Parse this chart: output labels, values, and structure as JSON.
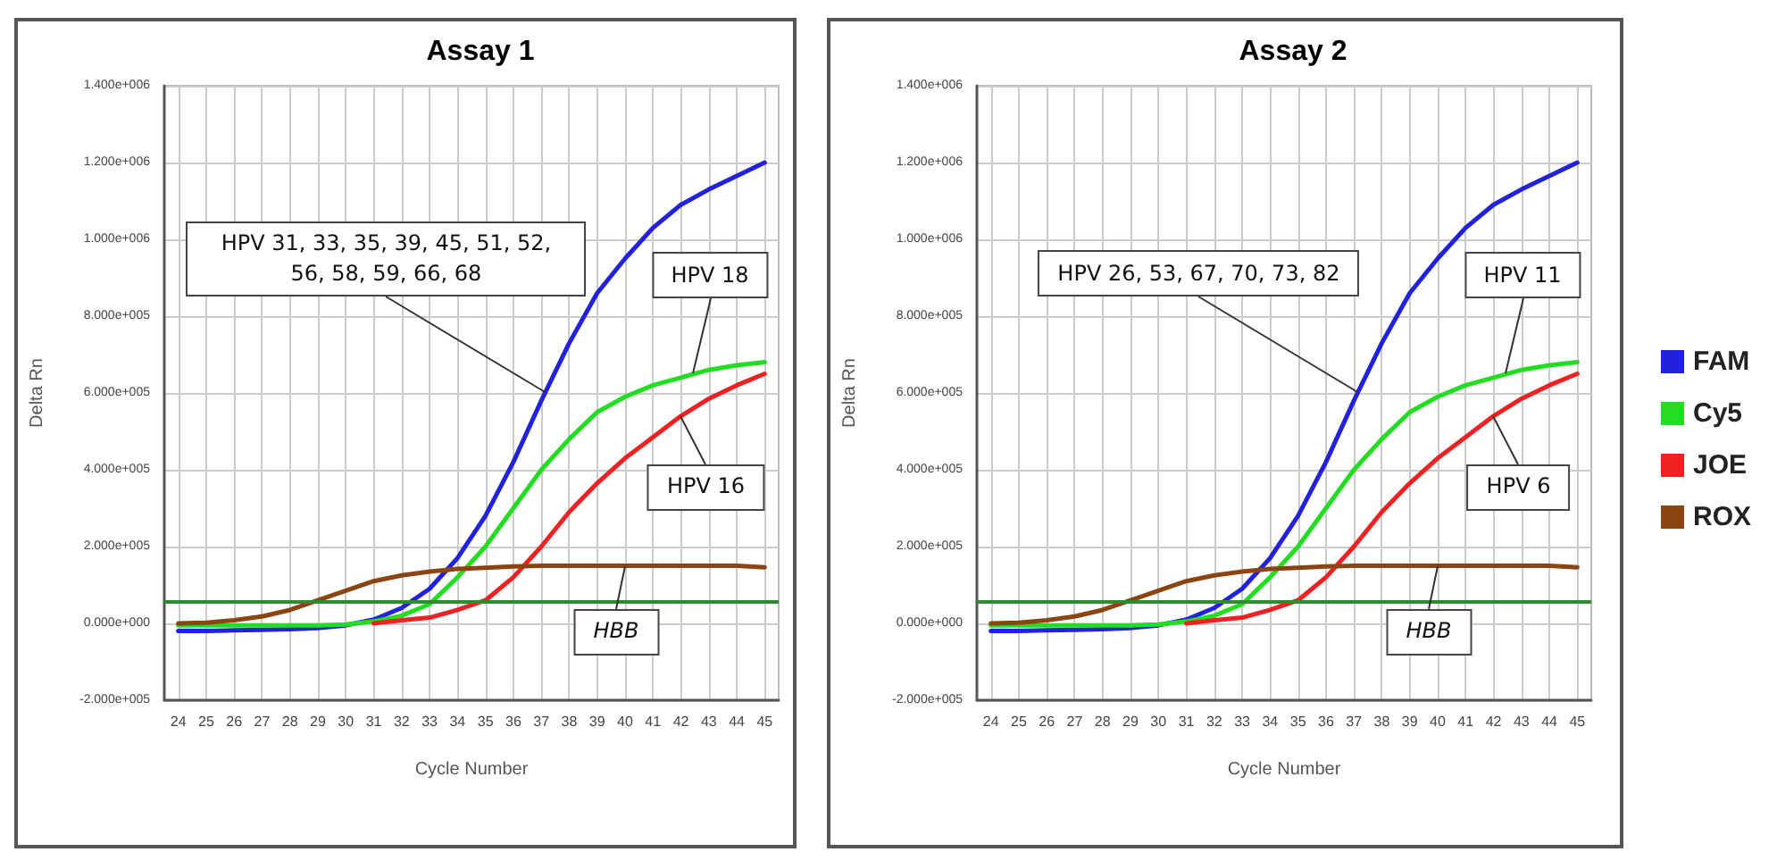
{
  "chart_data": [
    {
      "type": "line",
      "title": "Assay 1",
      "xlabel": "Cycle Number",
      "ylabel": "Delta Rn",
      "x": [
        24,
        25,
        26,
        27,
        28,
        29,
        30,
        31,
        32,
        33,
        34,
        35,
        36,
        37,
        38,
        39,
        40,
        41,
        42,
        43,
        44,
        45
      ],
      "series": [
        {
          "color": "#2222dd",
          "values": [
            -20000,
            -20000,
            -18000,
            -17000,
            -15000,
            -12000,
            -5000,
            10000,
            40000,
            90000,
            170000,
            280000,
            420000,
            580000,
            730000,
            860000,
            950000,
            1030000,
            1090000,
            1130000,
            1165000,
            1200000
          ]
        },
        {
          "color": "#22dd22",
          "values": [
            -5000,
            -5000,
            -5000,
            -5000,
            -5000,
            -5000,
            -3000,
            5000,
            20000,
            50000,
            120000,
            200000,
            300000,
            400000,
            480000,
            550000,
            590000,
            620000,
            640000,
            660000,
            672000,
            680000
          ]
        },
        {
          "color": "#ee2222",
          "values": [
            null,
            null,
            null,
            null,
            null,
            null,
            null,
            0,
            8000,
            15000,
            35000,
            60000,
            120000,
            200000,
            290000,
            365000,
            430000,
            485000,
            540000,
            585000,
            620000,
            650000
          ]
        },
        {
          "color": "#8b4513",
          "values": [
            0,
            2000,
            8000,
            18000,
            35000,
            60000,
            85000,
            110000,
            125000,
            135000,
            142000,
            145000,
            148000,
            150000,
            150000,
            150000,
            150000,
            150000,
            150000,
            150000,
            150000,
            146000
          ]
        }
      ],
      "xlim": [
        23.5,
        45.5
      ],
      "xticks": [
        24,
        25,
        26,
        27,
        28,
        29,
        30,
        31,
        32,
        33,
        34,
        35,
        36,
        37,
        38,
        39,
        40,
        41,
        42,
        43,
        44,
        45
      ],
      "ylim": [
        -200000,
        1400000
      ],
      "yticks": [
        {
          "value": -200000,
          "label": "-2.000e+005"
        },
        {
          "value": 0,
          "label": "0.000e+000"
        },
        {
          "value": 200000,
          "label": "2.000e+005"
        },
        {
          "value": 400000,
          "label": "4.000e+005"
        },
        {
          "value": 600000,
          "label": "6.000e+005"
        },
        {
          "value": 800000,
          "label": "8.000e+005"
        },
        {
          "value": 1000000,
          "label": "1.000e+006"
        },
        {
          "value": 1200000,
          "label": "1.200e+006"
        },
        {
          "value": 1400000,
          "label": "1.400e+006"
        }
      ],
      "ref_lines": [
        {
          "axis": "y",
          "value": 55000,
          "color": "#2e8b2e"
        }
      ],
      "annotations": [
        {
          "text": "HPV 31, 33, 35, 39, 45, 51, 52, 56, 58, 59, 66, 68",
          "x": 37.2,
          "y": 600000
        },
        {
          "text": "HPV 18",
          "x": 42.4,
          "y": 650000
        },
        {
          "text": "HPV 16",
          "x": 42,
          "y": 540000
        },
        {
          "text": "HBB",
          "x": 40,
          "y": 150000
        }
      ],
      "grid": true,
      "legend": false,
      "marker": "none",
      "line_style": "solid"
    },
    {
      "type": "line",
      "title": "Assay 2",
      "xlabel": "Cycle Number",
      "ylabel": "Delta Rn",
      "x": [
        24,
        25,
        26,
        27,
        28,
        29,
        30,
        31,
        32,
        33,
        34,
        35,
        36,
        37,
        38,
        39,
        40,
        41,
        42,
        43,
        44,
        45
      ],
      "series": [
        {
          "name": "FAM",
          "color": "#2222dd",
          "values": [
            -20000,
            -20000,
            -18000,
            -17000,
            -15000,
            -12000,
            -5000,
            10000,
            40000,
            90000,
            170000,
            280000,
            420000,
            580000,
            730000,
            860000,
            950000,
            1030000,
            1090000,
            1130000,
            1165000,
            1200000
          ]
        },
        {
          "name": "Cy5",
          "color": "#22dd22",
          "values": [
            -5000,
            -5000,
            -5000,
            -5000,
            -5000,
            -5000,
            -3000,
            5000,
            20000,
            50000,
            120000,
            200000,
            300000,
            400000,
            480000,
            550000,
            590000,
            620000,
            640000,
            660000,
            672000,
            680000
          ]
        },
        {
          "name": "JOE",
          "color": "#ee2222",
          "values": [
            null,
            null,
            null,
            null,
            null,
            null,
            null,
            0,
            8000,
            15000,
            35000,
            60000,
            120000,
            200000,
            290000,
            365000,
            430000,
            485000,
            540000,
            585000,
            620000,
            650000
          ]
        },
        {
          "name": "ROX",
          "color": "#8b4513",
          "values": [
            0,
            2000,
            8000,
            18000,
            35000,
            60000,
            85000,
            110000,
            125000,
            135000,
            142000,
            145000,
            148000,
            150000,
            150000,
            150000,
            150000,
            150000,
            150000,
            150000,
            150000,
            146000
          ]
        }
      ],
      "xlim": [
        23.5,
        45.5
      ],
      "xticks": [
        24,
        25,
        26,
        27,
        28,
        29,
        30,
        31,
        32,
        33,
        34,
        35,
        36,
        37,
        38,
        39,
        40,
        41,
        42,
        43,
        44,
        45
      ],
      "ylim": [
        -200000,
        1400000
      ],
      "yticks": [
        {
          "value": -200000,
          "label": "-2.000e+005"
        },
        {
          "value": 0,
          "label": "0.000e+000"
        },
        {
          "value": 200000,
          "label": "2.000e+005"
        },
        {
          "value": 400000,
          "label": "4.000e+005"
        },
        {
          "value": 600000,
          "label": "6.000e+005"
        },
        {
          "value": 800000,
          "label": "8.000e+005"
        },
        {
          "value": 1000000,
          "label": "1.000e+006"
        },
        {
          "value": 1200000,
          "label": "1.200e+006"
        },
        {
          "value": 1400000,
          "label": "1.400e+006"
        }
      ],
      "ref_lines": [
        {
          "axis": "y",
          "value": 55000,
          "color": "#2e8b2e"
        }
      ],
      "annotations": [
        {
          "text": "HPV 26, 53, 67, 70, 73, 82",
          "x": 37.2,
          "y": 600000
        },
        {
          "text": "HPV 11",
          "x": 42.4,
          "y": 650000
        },
        {
          "text": "HPV 6",
          "x": 42,
          "y": 540000
        },
        {
          "text": "HBB",
          "x": 40,
          "y": 150000
        }
      ],
      "grid": true,
      "legend": "right",
      "marker": "none",
      "line_style": "solid"
    }
  ]
}
